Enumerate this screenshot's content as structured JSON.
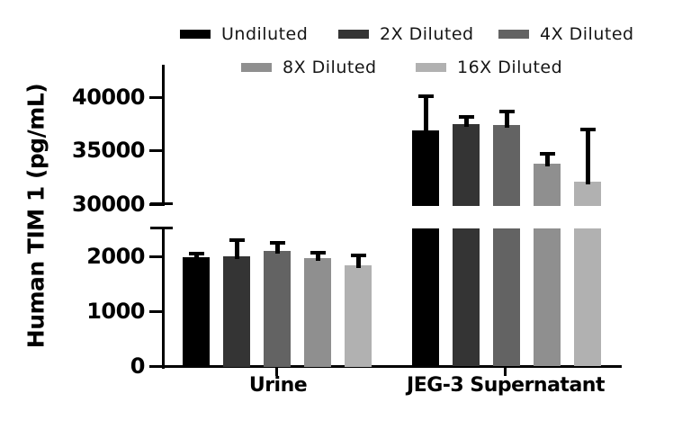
{
  "chart_data": {
    "type": "bar",
    "title": "",
    "ylabel": "Human TIM 1 (pg/mL)",
    "categories": [
      "Urine",
      "JEG-3 Supernatant"
    ],
    "series": [
      {
        "name": "Undiluted",
        "color": "#000000",
        "values": [
          1980,
          36900
        ],
        "errors": [
          70,
          3200
        ]
      },
      {
        "name": "2X Diluted",
        "color": "#343434",
        "values": [
          1990,
          37500
        ],
        "errors": [
          290,
          600
        ]
      },
      {
        "name": "4X Diluted",
        "color": "#636363",
        "values": [
          2090,
          37400
        ],
        "errors": [
          150,
          1200
        ]
      },
      {
        "name": "8X Diluted",
        "color": "#8f8f8f",
        "values": [
          1960,
          33800
        ],
        "errors": [
          100,
          900
        ]
      },
      {
        "name": "16X Diluted",
        "color": "#b1b1b1",
        "values": [
          1830,
          32100
        ],
        "errors": [
          180,
          4900
        ]
      }
    ],
    "error_bars": "+SD, black",
    "axis_break": true,
    "lower_axis": {
      "ylim": [
        0,
        2500
      ],
      "ticks": [
        "0",
        "1000",
        "2000"
      ],
      "tick_values": [
        0,
        1000,
        2000
      ]
    },
    "upper_axis": {
      "ylim": [
        30000,
        43000
      ],
      "ticks": [
        "30000",
        "35000",
        "40000"
      ],
      "tick_values": [
        30000,
        35000,
        40000
      ]
    },
    "legend_position": "top",
    "grid": false,
    "background": "#ffffff"
  }
}
